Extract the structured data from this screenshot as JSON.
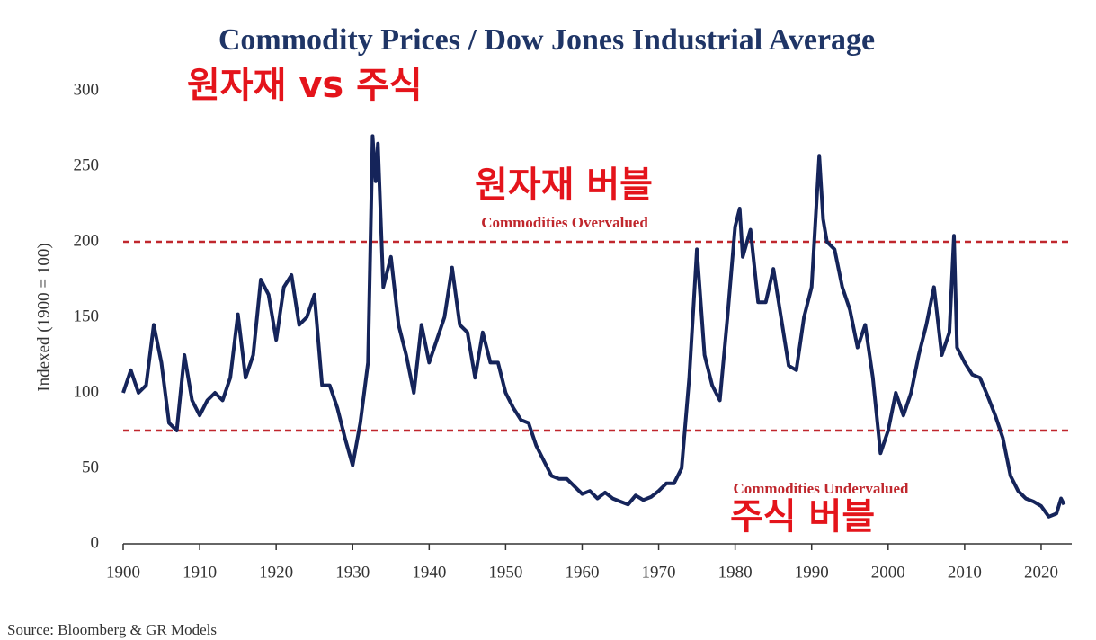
{
  "chart_data": {
    "type": "line",
    "title": "Commodity Prices / Dow Jones Industrial Average",
    "y_label": "Indexed (1900 = 100)",
    "source": "Source: Bloomberg & GR Models",
    "annotations": [
      "원자재 vs 주식",
      "원자재 버블",
      "주식 버블"
    ],
    "reference_lines": [
      {
        "value": 200,
        "label": "Commodities Overvalued",
        "color": "#c0272d"
      },
      {
        "value": 75,
        "label": "Commodities Undervalued",
        "color": "#c0272d"
      }
    ],
    "xlim": [
      1900,
      2024
    ],
    "xticks": [
      1900,
      1910,
      1920,
      1930,
      1940,
      1950,
      1960,
      1970,
      1980,
      1990,
      2000,
      2010,
      2020
    ],
    "ylim": [
      0,
      300
    ],
    "yticks": [
      0,
      50,
      100,
      150,
      200,
      250,
      300
    ],
    "series": [
      {
        "name": "Commodity Prices / DJIA",
        "color": "#15245a",
        "x": [
          1900,
          1901,
          1902,
          1903,
          1904,
          1905,
          1906,
          1907,
          1908,
          1909,
          1910,
          1911,
          1912,
          1913,
          1914,
          1915,
          1916,
          1917,
          1918,
          1919,
          1920,
          1921,
          1922,
          1923,
          1924,
          1925,
          1926,
          1927,
          1928,
          1929,
          1930,
          1931,
          1932,
          1932.6,
          1933,
          1933.3,
          1934,
          1935,
          1936,
          1937,
          1938,
          1939,
          1940,
          1941,
          1942,
          1943,
          1944,
          1945,
          1946,
          1947,
          1948,
          1949,
          1950,
          1951,
          1952,
          1953,
          1954,
          1955,
          1956,
          1957,
          1958,
          1959,
          1960,
          1961,
          1962,
          1963,
          1964,
          1965,
          1966,
          1967,
          1968,
          1969,
          1970,
          1971,
          1972,
          1973,
          1974,
          1975,
          1976,
          1977,
          1978,
          1979,
          1980,
          1980.6,
          1981,
          1982,
          1983,
          1984,
          1985,
          1986,
          1987,
          1988,
          1989,
          1990,
          1991,
          1991.5,
          1992,
          1993,
          1994,
          1995,
          1996,
          1997,
          1998,
          1999,
          2000,
          2001,
          2002,
          2003,
          2004,
          2005,
          2006,
          2007,
          2008,
          2008.6,
          2009,
          2010,
          2011,
          2012,
          2013,
          2014,
          2015,
          2016,
          2017,
          2018,
          2019,
          2020,
          2021,
          2022,
          2022.6,
          2023
        ],
        "values": [
          100,
          115,
          100,
          105,
          145,
          120,
          80,
          75,
          125,
          95,
          85,
          95,
          100,
          95,
          110,
          152,
          110,
          125,
          175,
          165,
          135,
          170,
          178,
          145,
          150,
          165,
          105,
          105,
          90,
          70,
          52,
          80,
          120,
          270,
          240,
          265,
          170,
          190,
          145,
          125,
          100,
          145,
          120,
          135,
          150,
          183,
          145,
          140,
          110,
          140,
          120,
          120,
          100,
          90,
          82,
          80,
          65,
          55,
          45,
          43,
          43,
          38,
          33,
          35,
          30,
          34,
          30,
          28,
          26,
          32,
          29,
          31,
          35,
          40,
          40,
          50,
          110,
          195,
          125,
          105,
          95,
          150,
          210,
          222,
          190,
          208,
          160,
          160,
          182,
          150,
          118,
          115,
          150,
          170,
          257,
          215,
          200,
          195,
          170,
          155,
          130,
          145,
          110,
          60,
          75,
          100,
          85,
          100,
          125,
          145,
          170,
          125,
          140,
          204,
          130,
          120,
          112,
          110,
          98,
          85,
          70,
          45,
          35,
          30,
          28,
          25,
          18,
          20,
          30,
          26
        ]
      }
    ]
  }
}
